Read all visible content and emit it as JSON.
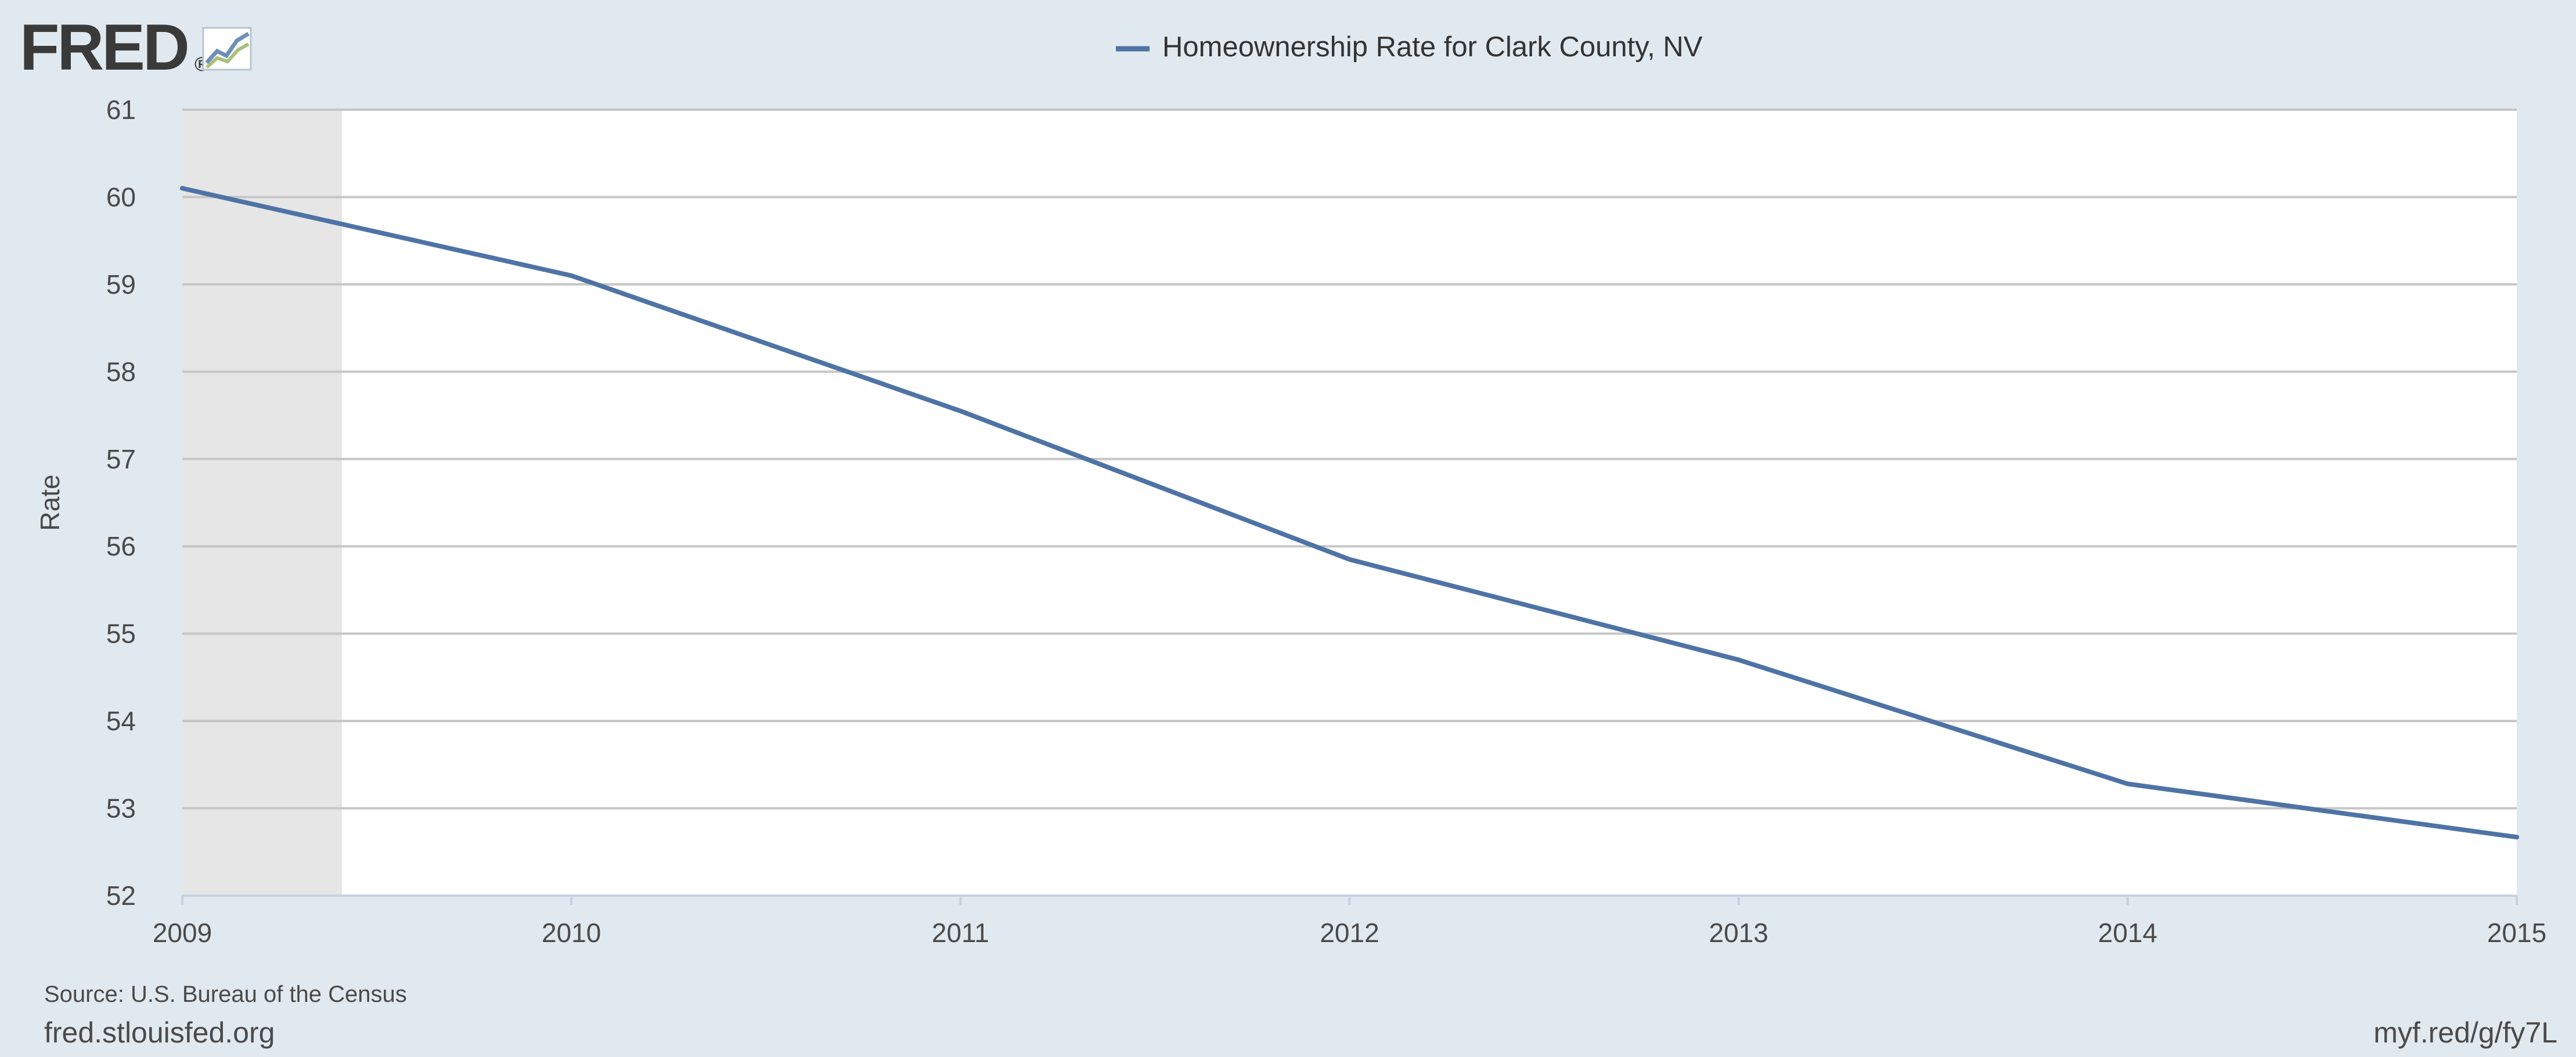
{
  "logo": {
    "text": "FRED",
    "registered": "®",
    "icon": "chart-line-icon"
  },
  "legend": {
    "label": "Homeownership Rate for Clark County, NV"
  },
  "footer": {
    "source": "Source: U.S. Bureau of the Census",
    "site": "fred.stlouisfed.org",
    "short_link": "myf.red/g/fy7L"
  },
  "colors": {
    "background": "#e1e9f0",
    "plot": "#ffffff",
    "series": "#4e73a5",
    "recession": "#e6e6e6",
    "grid": "#c6c6c6"
  },
  "chart_data": {
    "type": "line",
    "title": "",
    "xlabel": "",
    "ylabel": "Rate",
    "x": [
      2009,
      2010,
      2011,
      2012,
      2013,
      2014,
      2015
    ],
    "series": [
      {
        "name": "Homeownership Rate for Clark County, NV",
        "values": [
          60.1,
          59.1,
          57.55,
          55.85,
          54.7,
          53.28,
          52.67
        ]
      }
    ],
    "xlim": [
      2009,
      2015
    ],
    "ylim": [
      52,
      61
    ],
    "xticks": [
      "2009",
      "2010",
      "2011",
      "2012",
      "2013",
      "2014",
      "2015"
    ],
    "yticks": [
      "52",
      "53",
      "54",
      "55",
      "56",
      "57",
      "58",
      "59",
      "60",
      "61"
    ],
    "shaded_regions": [
      {
        "label": "recession",
        "from": 2009,
        "to": 2009.41
      }
    ],
    "grid": true,
    "legend": "top-center"
  }
}
